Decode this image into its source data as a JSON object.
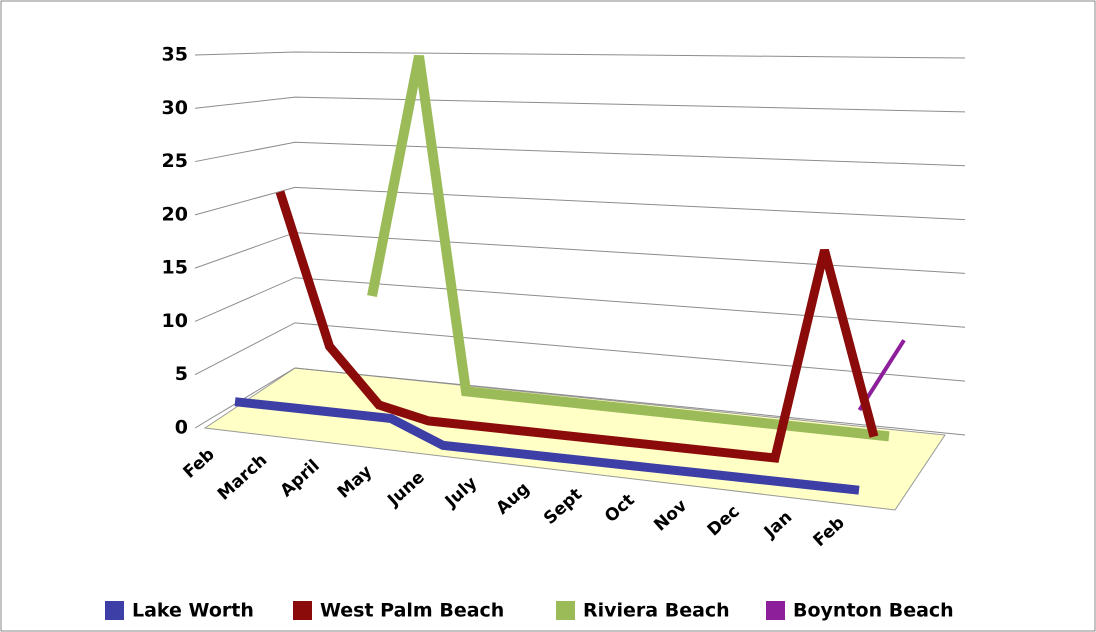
{
  "chart_data": {
    "type": "line3d",
    "categories": [
      "Feb",
      "March",
      "April",
      "May",
      "June",
      "July",
      "Aug",
      "Sept",
      "Oct",
      "Nov",
      "Dec",
      "Jan",
      "Feb"
    ],
    "series": [
      {
        "name": "Lake Worth",
        "color": "#3d3fa6",
        "values": [
          2,
          2,
          2,
          2,
          0,
          0,
          0,
          0,
          0,
          0,
          0,
          0,
          0
        ]
      },
      {
        "name": "West Palm Beach",
        "color": "#8b0a0a",
        "values": [
          20,
          6,
          1,
          0,
          0,
          0,
          0,
          0,
          0,
          0,
          0,
          20,
          3
        ]
      },
      {
        "name": "Riviera Beach",
        "color": "#9bbb59",
        "values": [
          null,
          9,
          32,
          1,
          1,
          1,
          1,
          1,
          1,
          1,
          1,
          1,
          1
        ]
      },
      {
        "name": "Boynton Beach",
        "color": "#8e1f9a",
        "values": [
          null,
          null,
          null,
          null,
          null,
          null,
          null,
          null,
          null,
          null,
          null,
          1,
          8
        ]
      }
    ],
    "ylim": [
      0,
      35
    ],
    "yticks": [
      0,
      5,
      10,
      15,
      20,
      25,
      30,
      35
    ],
    "grid": true,
    "legend": "bottom"
  }
}
